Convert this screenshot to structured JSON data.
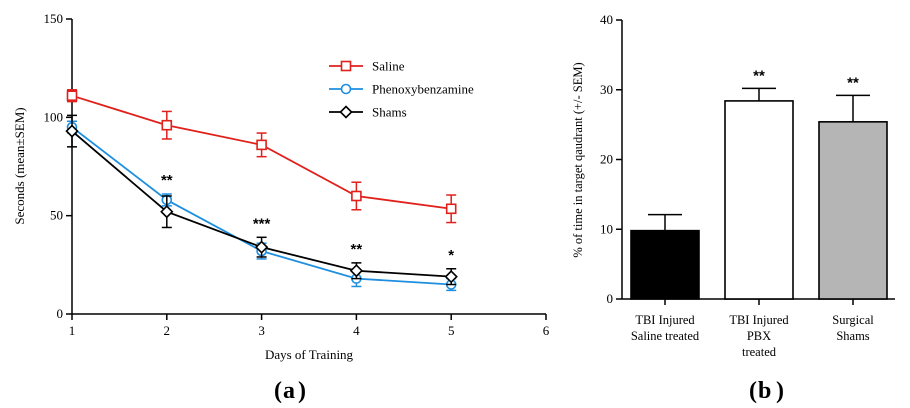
{
  "chart_data": [
    {
      "type": "line",
      "panel_label": "a",
      "xlabel": "Days of Training",
      "ylabel": "Seconds (mean±SEM)",
      "xlim": [
        1,
        6
      ],
      "ylim": [
        0,
        150
      ],
      "x_ticks": [
        "1",
        "2",
        "3",
        "4",
        "5",
        "6"
      ],
      "y_ticks": [
        "0",
        "50",
        "100",
        "150"
      ],
      "x": [
        1,
        2,
        3,
        4,
        5
      ],
      "legend_position": "top-right",
      "grid": false,
      "series": [
        {
          "name": "Saline",
          "color": "#e0201b",
          "marker": "square",
          "values": [
            111,
            96,
            86,
            60,
            53.5
          ],
          "sem": [
            3,
            7,
            6,
            7,
            7
          ]
        },
        {
          "name": "Phenoxybenzamine",
          "color": "#1e8fe0",
          "marker": "circle",
          "values": [
            95,
            58,
            32,
            18,
            15
          ],
          "sem": [
            3,
            3,
            4,
            4,
            3
          ]
        },
        {
          "name": "Shams",
          "color": "#000000",
          "marker": "diamond",
          "values": [
            93,
            52,
            34,
            22,
            19
          ],
          "sem": [
            8,
            8,
            5,
            4,
            4
          ]
        }
      ],
      "annotations": [
        {
          "x": 2,
          "text": "**"
        },
        {
          "x": 3,
          "text": "***"
        },
        {
          "x": 4,
          "text": "**"
        },
        {
          "x": 5,
          "text": "*"
        }
      ]
    },
    {
      "type": "bar",
      "panel_label": "b",
      "ylabel": "% of time in target qaudrant (+/- SEM)",
      "ylim": [
        0,
        40
      ],
      "y_ticks": [
        "0",
        "10",
        "20",
        "30",
        "40"
      ],
      "categories": [
        [
          "TBI Injured",
          "Saline treated"
        ],
        [
          "TBI Injured",
          "PBX",
          "treated"
        ],
        [
          "Surgical",
          "Shams"
        ]
      ],
      "values": [
        9.8,
        28.4,
        25.4
      ],
      "sem": [
        2.3,
        1.8,
        3.8
      ],
      "colors": [
        "#000000",
        "#ffffff",
        "#b5b5b5"
      ],
      "annotations": [
        "",
        "**",
        "**"
      ]
    }
  ]
}
